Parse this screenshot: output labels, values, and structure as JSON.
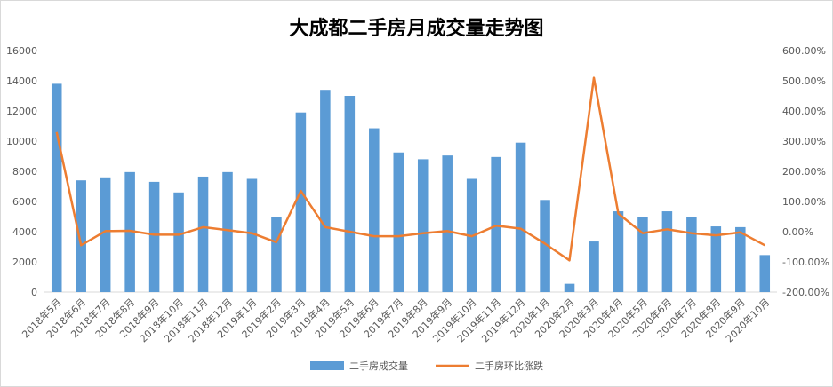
{
  "chart_data": {
    "type": "bar",
    "title": "大成都二手房月成交量走势图",
    "categories": [
      "2018年5月",
      "2018年6月",
      "2018年7月",
      "2018年8月",
      "2018年9月",
      "2018年10月",
      "2018年11月",
      "2018年12月",
      "2019年1月",
      "2019年2月",
      "2019年3月",
      "2019年4月",
      "2019年5月",
      "2019年6月",
      "2019年7月",
      "2019年8月",
      "2019年9月",
      "2019年10月",
      "2019年11月",
      "2019年12月",
      "2020年1月",
      "2020年2月",
      "2020年3月",
      "2020年4月",
      "2020年5月",
      "2020年6月",
      "2020年7月",
      "2020年8月",
      "2020年9月",
      "2020年10月"
    ],
    "series": [
      {
        "name": "二手房成交量",
        "type": "bar",
        "axis": "left",
        "color": "#5b9bd5",
        "values": [
          13800,
          7400,
          7600,
          7950,
          7300,
          6600,
          7650,
          7950,
          7500,
          5000,
          11900,
          13400,
          13000,
          10850,
          9250,
          8800,
          9050,
          7500,
          8950,
          9900,
          6100,
          550,
          3350,
          5350,
          4950,
          5350,
          5000,
          4350,
          4300,
          2450
        ]
      },
      {
        "name": "二手房环比涨跌",
        "type": "line",
        "axis": "right",
        "color": "#ed7d31",
        "values": [
          330,
          -45,
          2,
          3,
          -10,
          -10,
          15,
          5,
          -5,
          -35,
          135,
          15,
          0,
          -15,
          -15,
          -5,
          2,
          -15,
          20,
          10,
          -40,
          -95,
          510,
          60,
          -5,
          8,
          -5,
          -12,
          -2,
          -45
        ]
      }
    ],
    "y_left": {
      "min": 0,
      "max": 16000,
      "step": 2000
    },
    "y_right": {
      "min": -200,
      "max": 600,
      "step": 100,
      "unit": "%"
    },
    "grid": false,
    "legend": "bottom"
  }
}
